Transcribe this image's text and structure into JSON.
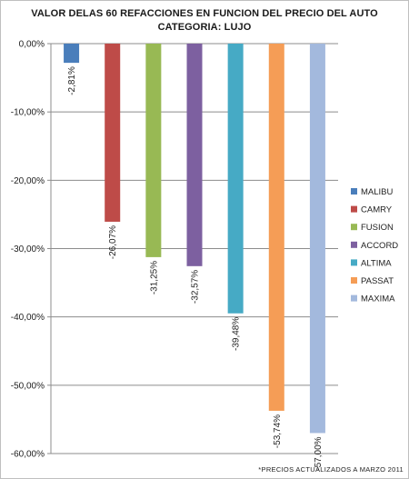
{
  "chart_data": {
    "type": "bar",
    "title": "VALOR DELAS 60 REFACCIONES EN FUNCION DEL PRECIO DEL AUTO",
    "subtitle": "CATEGORIA: LUJO",
    "categories": [
      "MALIBU",
      "CAMRY",
      "FUSION",
      "ACCORD",
      "ALTIMA",
      "PASSAT",
      "MAXIMA"
    ],
    "values": [
      -2.81,
      -26.07,
      -31.25,
      -32.57,
      -39.48,
      -53.74,
      -57.0
    ],
    "data_labels": [
      "-2,81%",
      "-26,07%",
      "-31,25%",
      "-32,57%",
      "-39,48%",
      "-53,74%",
      "-57,00%"
    ],
    "colors": [
      "#4a7ebb",
      "#be4b48",
      "#98b954",
      "#7d60a0",
      "#46aac5",
      "#f59d56",
      "#a3b9dd"
    ],
    "ylim": [
      -60,
      0
    ],
    "yticks": [
      0,
      -10,
      -20,
      -30,
      -40,
      -50,
      -60
    ],
    "ytick_labels": [
      "0,00%",
      "-10,00%",
      "-20,00%",
      "-30,00%",
      "-40,00%",
      "-50,00%",
      "-60,00%"
    ],
    "grid": true,
    "legend_position": "right",
    "xlabel": "",
    "ylabel": ""
  },
  "footnote": "*PRECIOS ACTUALIZADOS A MARZO 2011"
}
